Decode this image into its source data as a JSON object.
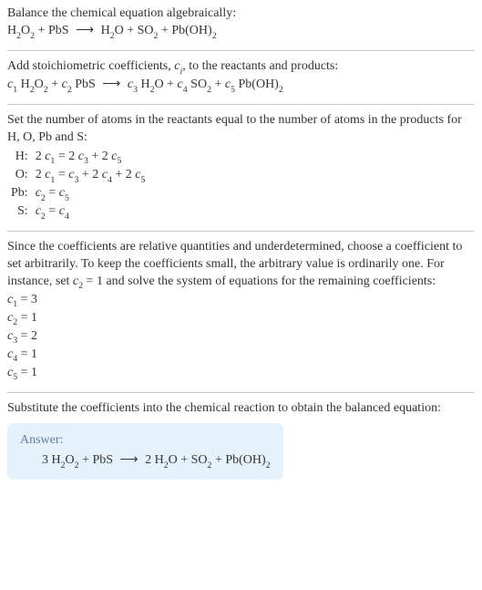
{
  "intro": {
    "line1_text": "Balance the chemical equation algebraically:",
    "eq1_html": "H<span class='sub'>2</span>O<span class='sub'>2</span> + PbS <span class='arrow'>⟶</span> H<span class='sub'>2</span>O + SO<span class='sub'>2</span> + Pb(OH)<span class='sub'>2</span>"
  },
  "stoich": {
    "line1_html": "Add stoichiometric coefficients, <span class='ci'>c<span class='sub'>i</span></span>, to the reactants and products:",
    "eq_html": "<span class='ci'>c</span><span class='sub'>1</span> H<span class='sub'>2</span>O<span class='sub'>2</span> + <span class='ci'>c</span><span class='sub'>2</span> PbS <span class='arrow'>⟶</span> <span class='ci'>c</span><span class='sub'>3</span> H<span class='sub'>2</span>O + <span class='ci'>c</span><span class='sub'>4</span> SO<span class='sub'>2</span> + <span class='ci'>c</span><span class='sub'>5</span> Pb(OH)<span class='sub'>2</span>"
  },
  "atoms": {
    "intro": "Set the number of atoms in the reactants equal to the number of atoms in the products for H, O, Pb and S:",
    "rows": [
      {
        "label": "H:",
        "eq_html": "2 <span class='ci'>c</span><span class='sub'>1</span> = 2 <span class='ci'>c</span><span class='sub'>3</span> + 2 <span class='ci'>c</span><span class='sub'>5</span>"
      },
      {
        "label": "O:",
        "eq_html": "2 <span class='ci'>c</span><span class='sub'>1</span> = <span class='ci'>c</span><span class='sub'>3</span> + 2 <span class='ci'>c</span><span class='sub'>4</span> + 2 <span class='ci'>c</span><span class='sub'>5</span>"
      },
      {
        "label": "Pb:",
        "eq_html": "<span class='ci'>c</span><span class='sub'>2</span> = <span class='ci'>c</span><span class='sub'>5</span>"
      },
      {
        "label": "S:",
        "eq_html": "<span class='ci'>c</span><span class='sub'>2</span> = <span class='ci'>c</span><span class='sub'>4</span>"
      }
    ]
  },
  "solve": {
    "intro_html": "Since the coefficients are relative quantities and underdetermined, choose a coefficient to set arbitrarily. To keep the coefficients small, the arbitrary value is ordinarily one. For instance, set <span class='ci'>c</span><span class='sub'>2</span> = 1 and solve the system of equations for the remaining coefficients:",
    "lines_html": [
      "<span class='ci'>c</span><span class='sub'>1</span> = 3",
      "<span class='ci'>c</span><span class='sub'>2</span> = 1",
      "<span class='ci'>c</span><span class='sub'>3</span> = 2",
      "<span class='ci'>c</span><span class='sub'>4</span> = 1",
      "<span class='ci'>c</span><span class='sub'>5</span> = 1"
    ]
  },
  "substitute_text": "Substitute the coefficients into the chemical reaction to obtain the balanced equation:",
  "answer": {
    "title": "Answer:",
    "eq_html": "3 H<span class='sub'>2</span>O<span class='sub'>2</span> + PbS <span class='arrow'>⟶</span> 2 H<span class='sub'>2</span>O + SO<span class='sub'>2</span> + Pb(OH)<span class='sub'>2</span>"
  },
  "colors": {
    "answer_bg": "#e6f2fb",
    "answer_title": "#5a7fa8",
    "hr": "#ccc",
    "text": "#333"
  }
}
